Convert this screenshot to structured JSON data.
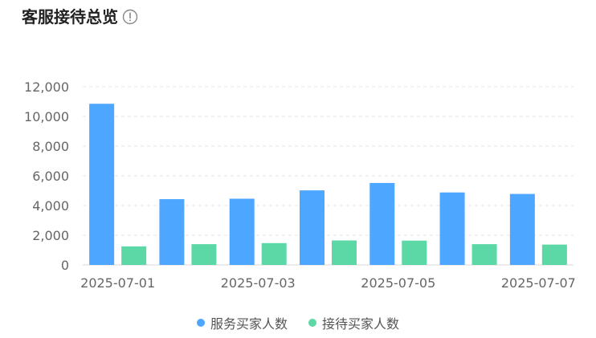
{
  "header": {
    "title": "客服接待总览",
    "info_icon": "info-circle-icon"
  },
  "colors": {
    "series_service": "#4da6ff",
    "series_reception": "#5bd8a6",
    "grid": "#e6e6e6",
    "axis_text": "#666666"
  },
  "chart_data": {
    "type": "bar",
    "categories": [
      "2025-07-01",
      "2025-07-02",
      "2025-07-03",
      "2025-07-04",
      "2025-07-05",
      "2025-07-06",
      "2025-07-07"
    ],
    "x_tick_labels": [
      "2025-07-01",
      "2025-07-03",
      "2025-07-05",
      "2025-07-07"
    ],
    "series": [
      {
        "name": "服务买家人数",
        "values": [
          10850,
          4430,
          4460,
          5020,
          5520,
          4880,
          4780
        ]
      },
      {
        "name": "接待买家人数",
        "values": [
          1250,
          1400,
          1470,
          1650,
          1640,
          1400,
          1370
        ]
      }
    ],
    "y_ticks": [
      0,
      2000,
      4000,
      6000,
      8000,
      10000,
      12000
    ],
    "y_tick_labels": [
      "0",
      "2,000",
      "4,000",
      "6,000",
      "8,000",
      "10,000",
      "12,000"
    ],
    "ylim": [
      0,
      12000
    ],
    "grid": true,
    "legend_position": "bottom-center"
  }
}
